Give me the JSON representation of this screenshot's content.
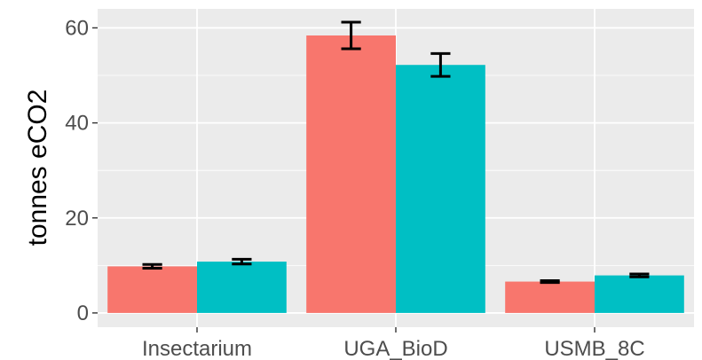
{
  "chart_data": {
    "type": "bar",
    "title": "",
    "xlabel": "",
    "ylabel": "tonnes eCO2",
    "categories": [
      "Insectarium",
      "UGA_BioD",
      "USMB_8C"
    ],
    "series": [
      {
        "color": "#F8766D",
        "values": [
          9.8,
          58.4,
          6.6
        ],
        "err_low": [
          9.4,
          55.6,
          6.4
        ],
        "err_high": [
          10.2,
          61.2,
          6.8
        ]
      },
      {
        "color": "#00BFC4",
        "values": [
          10.8,
          52.2,
          7.9
        ],
        "err_low": [
          10.3,
          49.8,
          7.6
        ],
        "err_high": [
          11.3,
          54.6,
          8.2
        ]
      }
    ],
    "ylim": [
      -3,
      64
    ],
    "yticks": [
      0,
      20,
      40,
      60
    ],
    "ytick_labels": [
      "0",
      "20",
      "40",
      "60"
    ],
    "grid": true,
    "background": "#EBEBEB",
    "legend": "none"
  }
}
